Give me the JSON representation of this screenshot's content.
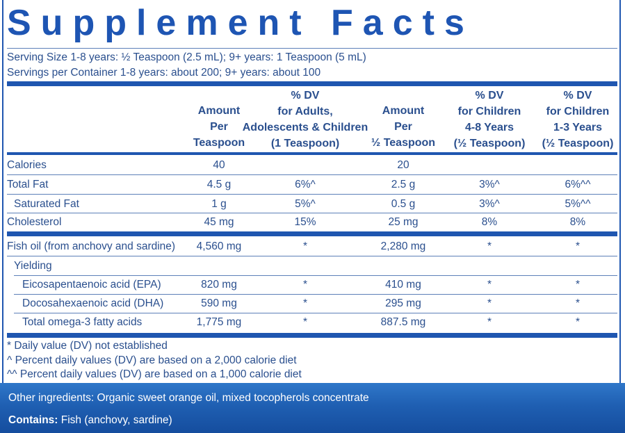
{
  "title": "Supplement Facts",
  "serving": {
    "size": "Serving Size 1-8 years: ½ Teaspoon (2.5 mL); 9+ years: 1 Teaspoon (5 mL)",
    "servings": "Servings per Container 1-8 years: about 200; 9+ years: about 100"
  },
  "headers": [
    [
      "Amount",
      "Per",
      "Teaspoon"
    ],
    [
      "% DV",
      "for Adults,",
      "Adolescents & Children",
      "(1 Teaspoon)"
    ],
    [
      "Amount",
      "Per",
      "½ Teaspoon"
    ],
    [
      "% DV",
      "for Children",
      "4-8 Years",
      "(½ Teaspoon)"
    ],
    [
      "% DV",
      "for Children",
      "1-3 Years",
      "(½ Teaspoon)"
    ]
  ],
  "rows_a": [
    {
      "name": "Calories",
      "v1": "40",
      "v2": "",
      "v3": "20",
      "v4": "",
      "v5": ""
    },
    {
      "name": "Total Fat",
      "v1": "4.5 g",
      "v2": "6%^",
      "v3": "2.5 g",
      "v4": "3%^",
      "v5": "6%^^"
    },
    {
      "name": "Saturated Fat",
      "v1": "1 g",
      "v2": "5%^",
      "v3": "0.5 g",
      "v4": "3%^",
      "v5": "5%^^"
    },
    {
      "name": "Cholesterol",
      "v1": "45 mg",
      "v2": "15%",
      "v3": "25 mg",
      "v4": "8%",
      "v5": "8%"
    }
  ],
  "rows_b": [
    {
      "name": "Fish oil (from anchovy and sardine)",
      "v1": "4,560 mg",
      "v2": "*",
      "v3": "2,280 mg",
      "v4": "*",
      "v5": "*"
    },
    {
      "name": "Yielding",
      "v1": "",
      "v2": "",
      "v3": "",
      "v4": "",
      "v5": ""
    },
    {
      "name": "Eicosapentaenoic acid (EPA)",
      "v1": "820 mg",
      "v2": "*",
      "v3": "410 mg",
      "v4": "*",
      "v5": "*"
    },
    {
      "name": "Docosahexaenoic acid (DHA)",
      "v1": "590 mg",
      "v2": "*",
      "v3": "295 mg",
      "v4": "*",
      "v5": "*"
    },
    {
      "name": "Total omega-3 fatty acids",
      "v1": "1,775 mg",
      "v2": "*",
      "v3": "887.5 mg",
      "v4": "*",
      "v5": "*"
    }
  ],
  "footnotes": [
    "* Daily value (DV) not established",
    "^ Percent daily values (DV) are based on a 2,000 calorie diet",
    "^^ Percent daily values (DV) are based on a 1,000 calorie diet"
  ],
  "other_ingredients": "Other ingredients: Organic sweet orange oil, mixed tocopherols concentrate",
  "contains_label": "Contains:",
  "contains_text": " Fish (anchovy, sardine)"
}
